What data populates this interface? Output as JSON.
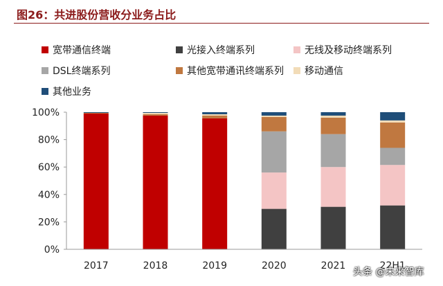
{
  "figure": {
    "title": "图26：共进股份营收分业务占比",
    "watermark": "头条 @未来智库"
  },
  "chart_data": {
    "type": "bar",
    "stacked": true,
    "categories": [
      "2017",
      "2018",
      "2019",
      "2020",
      "2021",
      "22H1"
    ],
    "ylim": [
      0,
      100
    ],
    "yticks": [
      "0%",
      "20%",
      "40%",
      "60%",
      "80%",
      "100%"
    ],
    "legend_position": "top",
    "series": [
      {
        "name": "宽带通信终端",
        "color": "#C00000",
        "values": [
          99,
          97.5,
          95.5,
          0,
          0,
          0
        ]
      },
      {
        "name": "光接入终端系列",
        "color": "#404040",
        "values": [
          0,
          0,
          0,
          29.5,
          31,
          32
        ]
      },
      {
        "name": "无线及移动终端系列",
        "color": "#F4C5C5",
        "values": [
          0,
          0,
          0,
          26.5,
          29,
          29.5
        ]
      },
      {
        "name": "DSL终端系列",
        "color": "#A6A6A6",
        "values": [
          0,
          0,
          0,
          30,
          24,
          12.5
        ]
      },
      {
        "name": "其他宽带通讯终端系列",
        "color": "#C07840",
        "values": [
          0.5,
          1,
          2,
          10.5,
          12,
          18.5
        ]
      },
      {
        "name": "移动通信",
        "color": "#F2DCB8",
        "values": [
          0,
          1,
          1,
          1,
          1.5,
          1.5
        ]
      },
      {
        "name": "其他业务",
        "color": "#1F4E79",
        "values": [
          0.5,
          0.5,
          1.5,
          2.5,
          2.5,
          6
        ]
      }
    ]
  }
}
